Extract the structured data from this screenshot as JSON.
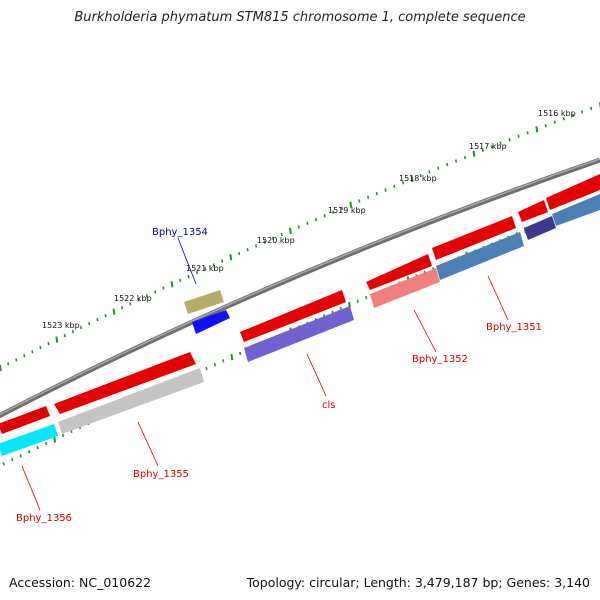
{
  "title": "Burkholderia phymatum STM815 chromosome 1, complete sequence",
  "accession_label": "Accession: NC_010622",
  "summary": "Topology: circular; Length: 3,479,187 bp; Genes: 3,140",
  "ruler": {
    "labels": [
      "1516 kbp",
      "1517 kbp",
      "1518 kbp",
      "1519 kbp",
      "1520 kbp",
      "1521 kbp",
      "1522 kbp",
      "1523 kbp"
    ],
    "color": "#2e8b2e"
  },
  "genes": [
    {
      "name": "Bphy_1351",
      "color": "#cc0000"
    },
    {
      "name": "Bphy_1352",
      "color": "#cc0000"
    },
    {
      "name": "cls",
      "color": "#cc0000"
    },
    {
      "name": "Bphy_1354",
      "color": "#0000aa"
    },
    {
      "name": "Bphy_1355",
      "color": "#cc0000"
    },
    {
      "name": "Bphy_1356",
      "color": "#cc0000"
    }
  ],
  "colors": {
    "backbone": "#808080",
    "forward_strand": "#ff0000",
    "blue_feature": "#1a1aff",
    "olive_feature": "#b3ad66",
    "steelblue_feature": "#4a80b8",
    "purple_feature": "#7060d0",
    "cyan_feature": "#00e5ff",
    "gray_feature": "#c0c0c0",
    "pink_feature": "#f08080",
    "navy_feature": "#403890"
  }
}
